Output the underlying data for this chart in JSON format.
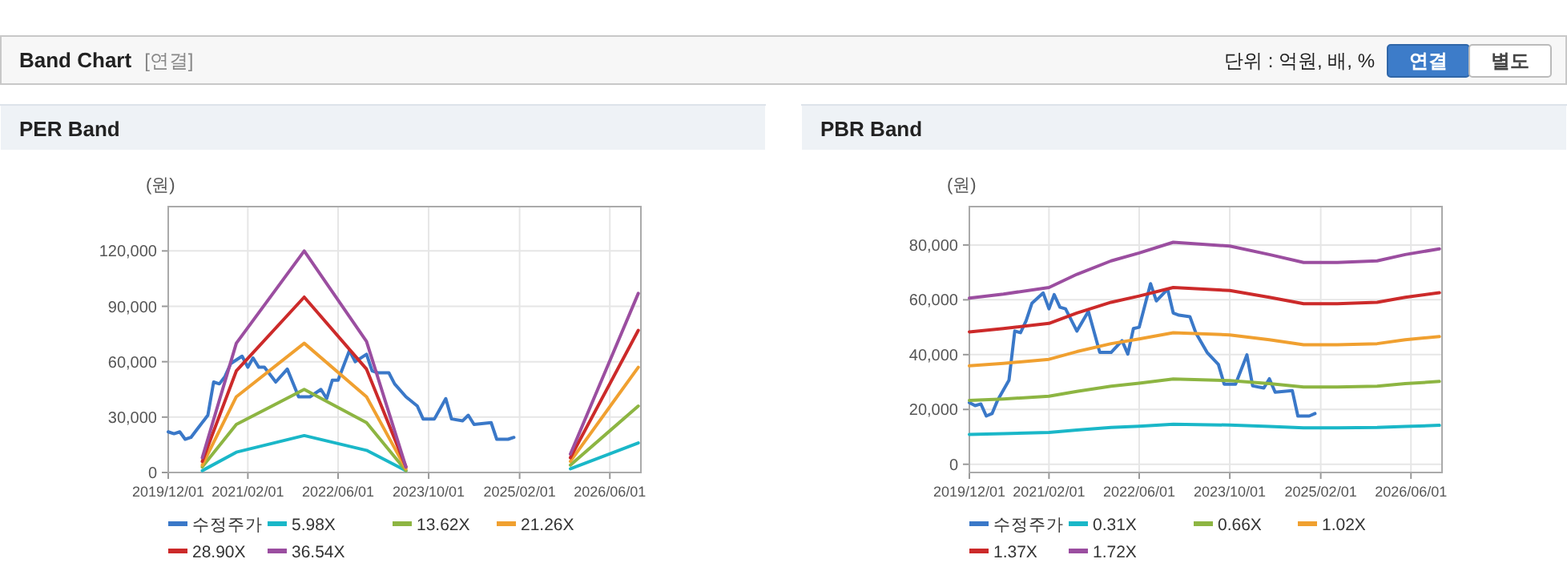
{
  "chart_data": [
    {
      "type": "other",
      "title": "Band Chart",
      "annotations": [
        "[연결]",
        "단위 : 억원, 배, %",
        "연결",
        "별도"
      ]
    },
    {
      "type": "line",
      "title": "PER Band",
      "ylabel": "(원)",
      "grid": true,
      "legend": "bottom",
      "xlim": [
        "2019-12-01",
        "2026-11-15"
      ],
      "xticks": [
        {
          "value": "2019-12-01",
          "label": "2019/12/01"
        },
        {
          "value": "2021-02-01",
          "label": "2021/02/01"
        },
        {
          "value": "2022-06-01",
          "label": "2022/06/01"
        },
        {
          "value": "2023-10-01",
          "label": "2023/10/01"
        },
        {
          "value": "2025-02-01",
          "label": "2025/02/01"
        },
        {
          "value": "2026-06-01",
          "label": "2026/06/01"
        }
      ],
      "ylim": [
        0,
        144000
      ],
      "yticks": [
        0,
        {
          "value": 30000,
          "label": "30,000"
        },
        {
          "value": 60000,
          "label": "60,000"
        },
        {
          "value": 90000,
          "label": "90,000"
        },
        {
          "value": 120000,
          "label": "120,000"
        }
      ],
      "series": [
        {
          "name": "수정주가",
          "color": "#3a78c8",
          "x": [
            "2019-12",
            "2020-01",
            "2020-02",
            "2020-03",
            "2020-04",
            "2020-05",
            "2020-07",
            "2020-08",
            "2020-09",
            "2020-10",
            "2020-11",
            "2021-01",
            "2021-02",
            "2021-03",
            "2021-04",
            "2021-05",
            "2021-07",
            "2021-09",
            "2021-11",
            "2022-01",
            "2022-03",
            "2022-04",
            "2022-05",
            "2022-06",
            "2022-08",
            "2022-09",
            "2022-11",
            "2022-12",
            "2023-01",
            "2023-03",
            "2023-04",
            "2023-06",
            "2023-08",
            "2023-09",
            "2023-11",
            "2024-01",
            "2024-02",
            "2024-04",
            "2024-05",
            "2024-06",
            "2024-09",
            "2024-10",
            "2024-12",
            "2025-01"
          ],
          "values": [
            22000,
            21000,
            22000,
            18000,
            19000,
            23000,
            31000,
            49000,
            48000,
            52000,
            59000,
            63000,
            57000,
            62000,
            57000,
            57000,
            49000,
            56000,
            41000,
            41000,
            45000,
            40000,
            50000,
            50000,
            66000,
            60000,
            64000,
            55000,
            54000,
            54000,
            48000,
            41000,
            36000,
            29000,
            29000,
            40000,
            29000,
            28000,
            31000,
            26000,
            27000,
            18000,
            18000,
            19000
          ]
        },
        {
          "name": "5.98X",
          "color": "#1ab7c8",
          "x": [
            "2020-06",
            "2020-12",
            "2021-12",
            "2022-11",
            "2023-06",
            "2024-08",
            "2025-11",
            "2026-11"
          ],
          "values": [
            1000,
            11000,
            20000,
            12000,
            1000,
            null,
            2000,
            16000
          ]
        },
        {
          "name": "13.62X",
          "color": "#8db542",
          "x": [
            "2020-06",
            "2020-12",
            "2021-12",
            "2022-11",
            "2023-06",
            "2024-08",
            "2025-11",
            "2026-11"
          ],
          "values": [
            3000,
            26000,
            45000,
            27000,
            1000,
            null,
            4000,
            36000
          ]
        },
        {
          "name": "21.26X",
          "color": "#f0a030",
          "x": [
            "2020-06",
            "2020-12",
            "2021-12",
            "2022-11",
            "2023-06",
            "2024-08",
            "2025-11",
            "2026-11"
          ],
          "values": [
            4000,
            41000,
            70000,
            41000,
            2000,
            null,
            6000,
            57000
          ]
        },
        {
          "name": "28.90X",
          "color": "#cc2a2a",
          "x": [
            "2020-06",
            "2020-12",
            "2021-12",
            "2022-11",
            "2023-06",
            "2024-08",
            "2025-11",
            "2026-11"
          ],
          "values": [
            6000,
            55000,
            95000,
            56000,
            3000,
            null,
            8000,
            77000
          ]
        },
        {
          "name": "36.54X",
          "color": "#9b4ea0",
          "x": [
            "2020-06",
            "2020-12",
            "2021-12",
            "2022-11",
            "2023-06",
            "2024-08",
            "2025-11",
            "2026-11"
          ],
          "values": [
            8000,
            70000,
            120000,
            71000,
            3000,
            null,
            10000,
            97000
          ]
        }
      ]
    },
    {
      "type": "line",
      "title": "PBR Band",
      "ylabel": "(원)",
      "grid": true,
      "legend": "bottom",
      "xlim": [
        "2019-12-01",
        "2026-11-15"
      ],
      "xticks": [
        {
          "value": "2019-12-01",
          "label": "2019/12/01"
        },
        {
          "value": "2021-02-01",
          "label": "2021/02/01"
        },
        {
          "value": "2022-06-01",
          "label": "2022/06/01"
        },
        {
          "value": "2023-10-01",
          "label": "2023/10/01"
        },
        {
          "value": "2025-02-01",
          "label": "2025/02/01"
        },
        {
          "value": "2026-06-01",
          "label": "2026/06/01"
        }
      ],
      "ylim": [
        -3000,
        94000
      ],
      "yticks": [
        0,
        {
          "value": 20000,
          "label": "20,000"
        },
        {
          "value": 40000,
          "label": "40,000"
        },
        {
          "value": 60000,
          "label": "60,000"
        },
        {
          "value": 80000,
          "label": "80,000"
        }
      ],
      "series": [
        {
          "name": "수정주가",
          "color": "#3a78c8",
          "x": [
            "2019-12",
            "2020-01",
            "2020-02",
            "2020-03",
            "2020-04",
            "2020-05",
            "2020-07",
            "2020-08",
            "2020-09",
            "2020-10",
            "2020-11",
            "2021-01",
            "2021-02",
            "2021-03",
            "2021-04",
            "2021-05",
            "2021-07",
            "2021-09",
            "2021-11",
            "2022-01",
            "2022-03",
            "2022-04",
            "2022-05",
            "2022-06",
            "2022-08",
            "2022-09",
            "2022-11",
            "2022-12",
            "2023-01",
            "2023-03",
            "2023-04",
            "2023-06",
            "2023-08",
            "2023-09",
            "2023-11",
            "2024-01",
            "2024-02",
            "2024-04",
            "2024-05",
            "2024-06",
            "2024-09",
            "2024-10",
            "2024-12",
            "2025-01"
          ],
          "values": [
            22500,
            21400,
            22000,
            17600,
            18500,
            23400,
            30700,
            48600,
            48000,
            52300,
            58700,
            62500,
            56700,
            61900,
            57300,
            56700,
            48600,
            55800,
            40800,
            40800,
            45100,
            40200,
            49500,
            50000,
            65900,
            59600,
            63900,
            55200,
            54400,
            53800,
            48000,
            40800,
            36400,
            29200,
            29200,
            39900,
            28600,
            27800,
            31200,
            26300,
            26900,
            17600,
            17600,
            18500
          ]
        },
        {
          "name": "0.31X",
          "color": "#1ab7c8",
          "x": [
            "2019-12",
            "2020-06",
            "2021-02",
            "2021-07",
            "2022-01",
            "2022-06",
            "2022-12",
            "2023-10",
            "2024-05",
            "2024-11",
            "2025-05",
            "2025-12",
            "2026-05",
            "2026-11"
          ],
          "values": [
            10900,
            11200,
            11600,
            12500,
            13400,
            13900,
            14600,
            14300,
            13800,
            13300,
            13300,
            13400,
            13800,
            14200
          ]
        },
        {
          "name": "0.66X",
          "color": "#8db542",
          "x": [
            "2019-12",
            "2020-06",
            "2021-02",
            "2021-07",
            "2022-01",
            "2022-06",
            "2022-12",
            "2023-10",
            "2024-05",
            "2024-11",
            "2025-05",
            "2025-12",
            "2026-05",
            "2026-11"
          ],
          "values": [
            23300,
            23800,
            24800,
            26600,
            28500,
            29600,
            31100,
            30500,
            29400,
            28200,
            28200,
            28500,
            29400,
            30200
          ]
        },
        {
          "name": "1.02X",
          "color": "#f0a030",
          "x": [
            "2019-12",
            "2020-06",
            "2021-02",
            "2021-07",
            "2022-01",
            "2022-06",
            "2022-12",
            "2023-10",
            "2024-05",
            "2024-11",
            "2025-05",
            "2025-12",
            "2026-05",
            "2026-11"
          ],
          "values": [
            35900,
            36800,
            38300,
            41100,
            44000,
            45700,
            48000,
            47200,
            45400,
            43600,
            43600,
            44000,
            45400,
            46600
          ]
        },
        {
          "name": "1.37X",
          "color": "#cc2a2a",
          "x": [
            "2019-12",
            "2020-06",
            "2021-02",
            "2021-07",
            "2022-01",
            "2022-06",
            "2022-12",
            "2023-10",
            "2024-05",
            "2024-11",
            "2025-05",
            "2025-12",
            "2026-05",
            "2026-11"
          ],
          "values": [
            48300,
            49500,
            51400,
            55200,
            59100,
            61400,
            64500,
            63400,
            60900,
            58600,
            58600,
            59100,
            60900,
            62600
          ]
        },
        {
          "name": "1.72X",
          "color": "#9b4ea0",
          "x": [
            "2019-12",
            "2020-06",
            "2021-02",
            "2021-07",
            "2022-01",
            "2022-06",
            "2022-12",
            "2023-10",
            "2024-05",
            "2024-11",
            "2025-05",
            "2025-12",
            "2026-05",
            "2026-11"
          ],
          "values": [
            60600,
            62100,
            64500,
            69300,
            74200,
            77100,
            81000,
            79600,
            76500,
            73600,
            73600,
            74200,
            76500,
            78600
          ]
        }
      ]
    }
  ]
}
